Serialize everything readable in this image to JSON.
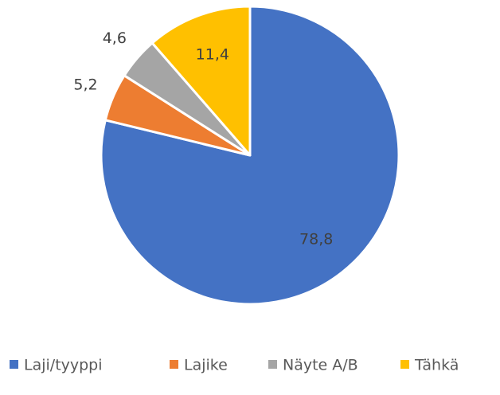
{
  "chart_data": {
    "type": "pie",
    "categories": [
      "Laji/tyyppi",
      "Lajike",
      "Näyte A/B",
      "Tähkä"
    ],
    "values": [
      78.8,
      5.2,
      4.6,
      11.4
    ],
    "value_labels": [
      "78,8",
      "5,2",
      "4,6",
      "11,4"
    ],
    "colors": [
      "#4472c4",
      "#ed7d31",
      "#a5a5a5",
      "#ffc000"
    ],
    "legend": "bottom"
  }
}
